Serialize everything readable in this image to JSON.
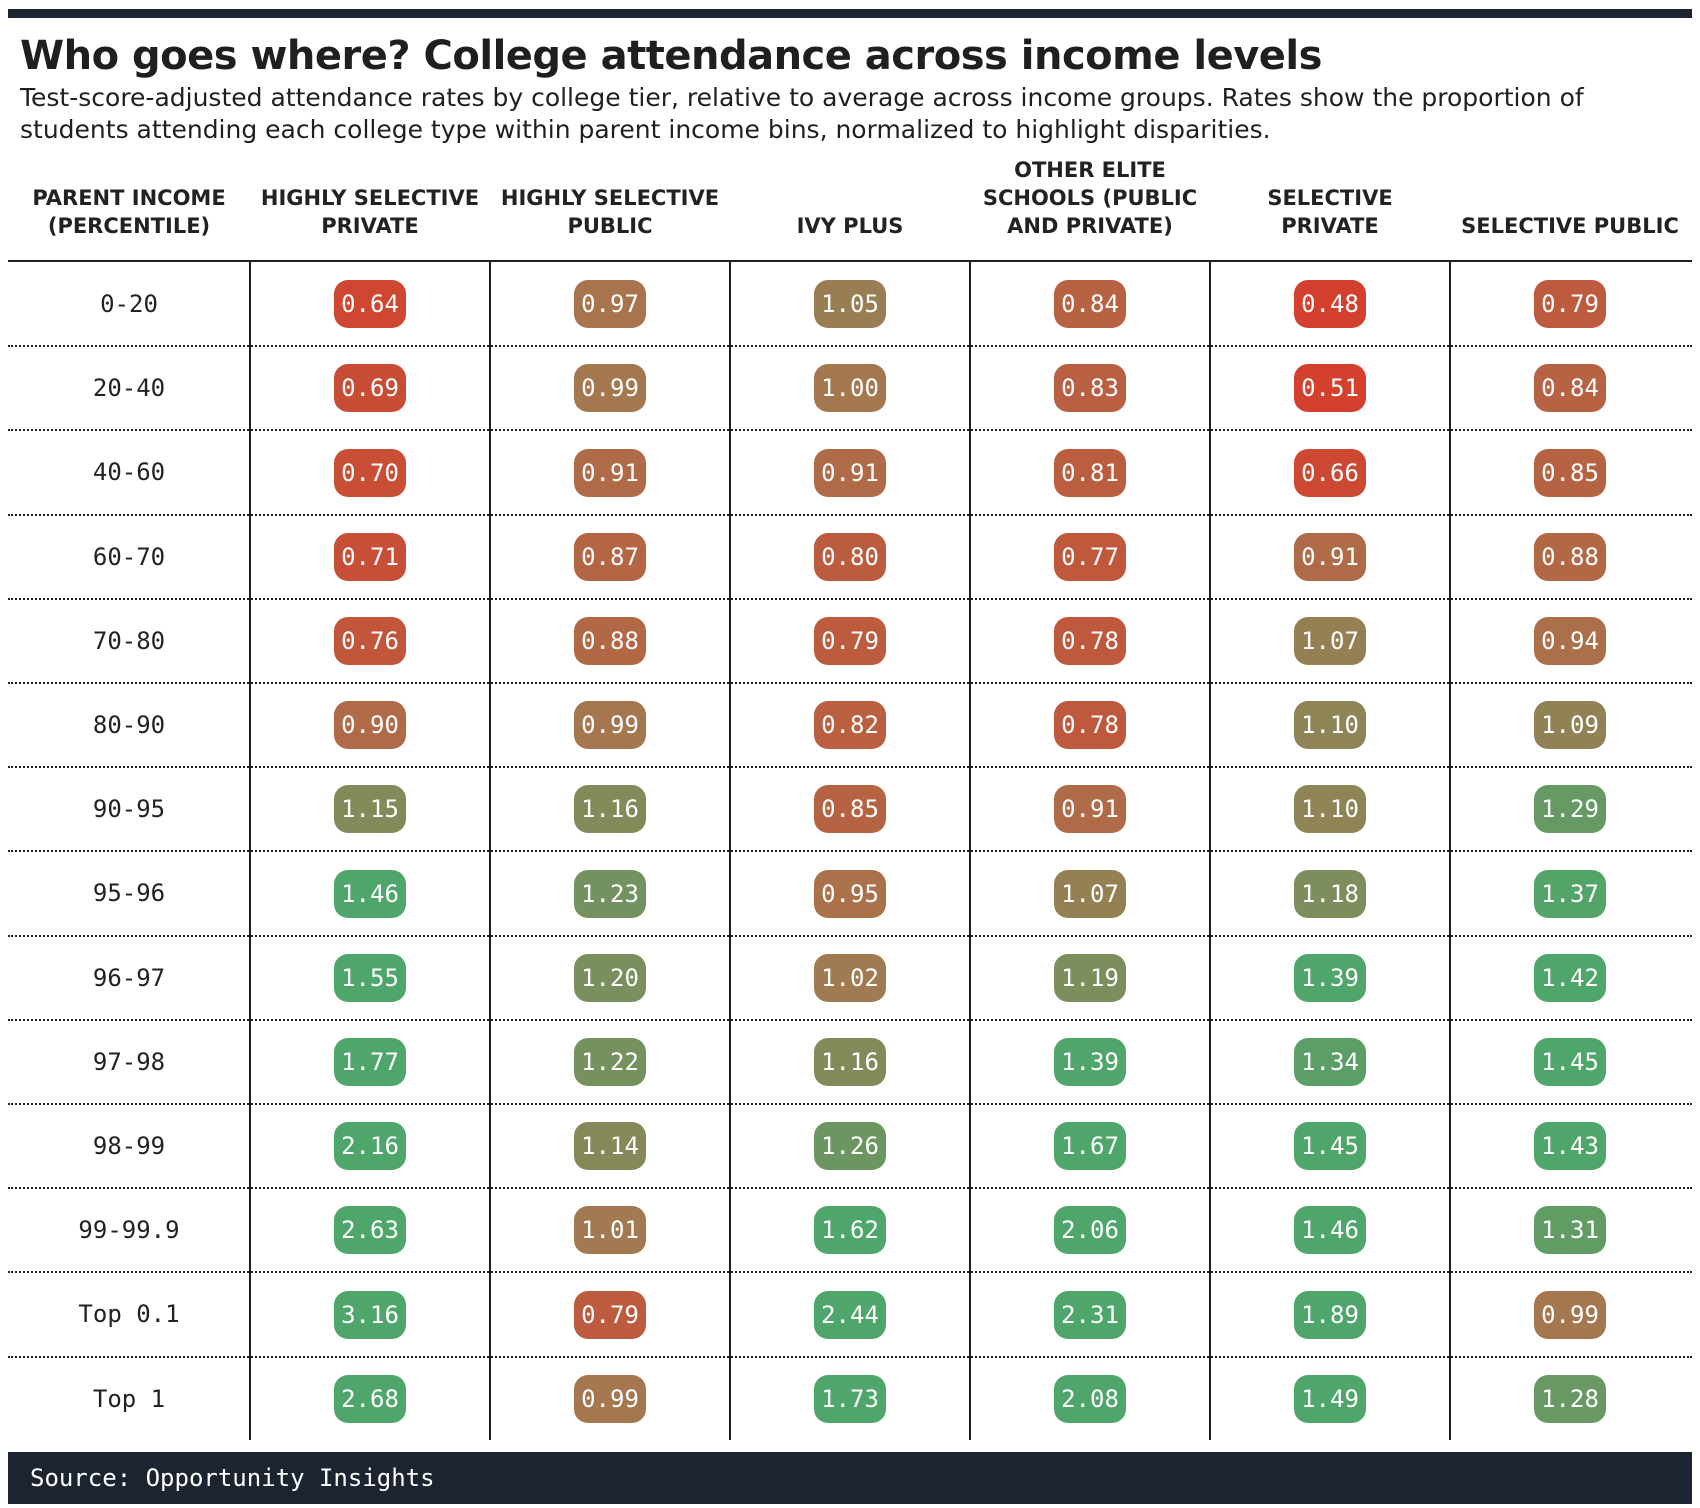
{
  "title": "Who goes where? College attendance across income levels",
  "subtitle": "Test-score-adjusted attendance rates by college tier, relative to average across income groups. Rates show the proportion of students attending each college type within parent income bins, normalized to highlight disparities.",
  "source": "Source: Opportunity Insights",
  "colors": {
    "top_bar": "#1c2431",
    "footer_bar": "#1c2431",
    "low": "#d4402e",
    "mid": "#a4784f",
    "high": "#4ea66b"
  },
  "chart_data": {
    "type": "table",
    "row_header": "PARENT INCOME (PERCENTILE)",
    "columns": [
      "HIGHLY SELECTIVE PRIVATE",
      "HIGHLY SELECTIVE PUBLIC",
      "IVY PLUS",
      "OTHER ELITE SCHOOLS (PUBLIC AND PRIVATE)",
      "SELECTIVE PRIVATE",
      "SELECTIVE PUBLIC"
    ],
    "rows": [
      {
        "income": "0-20",
        "values": [
          "0.64",
          "0.97",
          "1.05",
          "0.84",
          "0.48",
          "0.79"
        ]
      },
      {
        "income": "20-40",
        "values": [
          "0.69",
          "0.99",
          "1.00",
          "0.83",
          "0.51",
          "0.84"
        ]
      },
      {
        "income": "40-60",
        "values": [
          "0.70",
          "0.91",
          "0.91",
          "0.81",
          "0.66",
          "0.85"
        ]
      },
      {
        "income": "60-70",
        "values": [
          "0.71",
          "0.87",
          "0.80",
          "0.77",
          "0.91",
          "0.88"
        ]
      },
      {
        "income": "70-80",
        "values": [
          "0.76",
          "0.88",
          "0.79",
          "0.78",
          "1.07",
          "0.94"
        ]
      },
      {
        "income": "80-90",
        "values": [
          "0.90",
          "0.99",
          "0.82",
          "0.78",
          "1.10",
          "1.09"
        ]
      },
      {
        "income": "90-95",
        "values": [
          "1.15",
          "1.16",
          "0.85",
          "0.91",
          "1.10",
          "1.29"
        ]
      },
      {
        "income": "95-96",
        "values": [
          "1.46",
          "1.23",
          "0.95",
          "1.07",
          "1.18",
          "1.37"
        ]
      },
      {
        "income": "96-97",
        "values": [
          "1.55",
          "1.20",
          "1.02",
          "1.19",
          "1.39",
          "1.42"
        ]
      },
      {
        "income": "97-98",
        "values": [
          "1.77",
          "1.22",
          "1.16",
          "1.39",
          "1.34",
          "1.45"
        ]
      },
      {
        "income": "98-99",
        "values": [
          "2.16",
          "1.14",
          "1.26",
          "1.67",
          "1.45",
          "1.43"
        ]
      },
      {
        "income": "99-99.9",
        "values": [
          "2.63",
          "1.01",
          "1.62",
          "2.06",
          "1.46",
          "1.31"
        ]
      },
      {
        "income": "Top 0.1",
        "values": [
          "3.16",
          "0.79",
          "2.44",
          "2.31",
          "1.89",
          "0.99"
        ]
      },
      {
        "income": "Top 1",
        "values": [
          "2.68",
          "0.99",
          "1.73",
          "2.08",
          "1.49",
          "1.28"
        ]
      }
    ]
  }
}
